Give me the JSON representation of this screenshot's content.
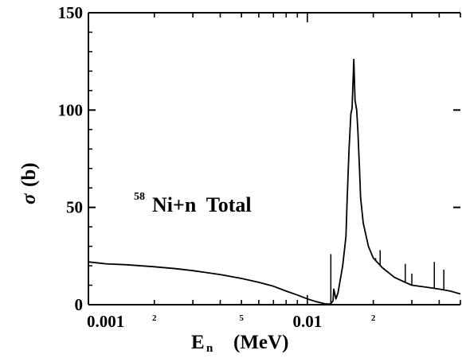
{
  "chart_data": {
    "type": "line",
    "title": "",
    "annotation": {
      "superscript": "58",
      "text": "Ni+n  Total"
    },
    "xlabel": {
      "main": "E",
      "subscript": "n",
      "unit": "(MeV)"
    },
    "ylabel": {
      "symbol": "σ",
      "unit": "(b)"
    },
    "x_scale": "log",
    "xlim": [
      0.001,
      0.05
    ],
    "ylim": [
      0,
      150
    ],
    "x_ticks": [
      {
        "value": 0.001,
        "label": "0.001",
        "major": true
      },
      {
        "value": 0.002,
        "label": "2",
        "major": false
      },
      {
        "value": 0.005,
        "label": "5",
        "major": false
      },
      {
        "value": 0.01,
        "label": "0.01",
        "major": true
      },
      {
        "value": 0.02,
        "label": "2",
        "major": false
      }
    ],
    "y_ticks": [
      {
        "value": 0,
        "label": "0"
      },
      {
        "value": 50,
        "label": "50"
      },
      {
        "value": 100,
        "label": "100"
      },
      {
        "value": 150,
        "label": "150"
      }
    ],
    "grid": false,
    "series": [
      {
        "x": [
          0.001,
          0.0012,
          0.0015,
          0.002,
          0.0025,
          0.003,
          0.004,
          0.005,
          0.006,
          0.007,
          0.008,
          0.009,
          0.01,
          0.011,
          0.012,
          0.0125,
          0.0128,
          0.0131,
          0.0132,
          0.0135,
          0.0138,
          0.014,
          0.0145,
          0.015,
          0.0152,
          0.0155,
          0.0158,
          0.016,
          0.0163,
          0.0165,
          0.0168,
          0.017,
          0.0173,
          0.0175,
          0.018,
          0.019,
          0.02,
          0.022,
          0.025,
          0.028,
          0.03,
          0.035,
          0.04,
          0.045,
          0.05
        ],
        "y": [
          22,
          21,
          20.5,
          19.5,
          18.5,
          17.5,
          15.5,
          13.5,
          11.5,
          9.5,
          7,
          5,
          3,
          1.5,
          0.5,
          0.3,
          0.5,
          2,
          8,
          3,
          6,
          10,
          20,
          35,
          55,
          80,
          98,
          101,
          126,
          105,
          100,
          90,
          70,
          55,
          42,
          30,
          24,
          19,
          14,
          11.5,
          10,
          9,
          8,
          7,
          5.5
        ]
      }
    ],
    "spikes": [
      {
        "x": 0.0128,
        "y": 26
      },
      {
        "x": 0.0167,
        "y": 101
      },
      {
        "x": 0.0205,
        "y": 24
      },
      {
        "x": 0.0215,
        "y": 28
      },
      {
        "x": 0.028,
        "y": 21
      },
      {
        "x": 0.03,
        "y": 16
      },
      {
        "x": 0.038,
        "y": 22
      },
      {
        "x": 0.042,
        "y": 18
      }
    ]
  }
}
